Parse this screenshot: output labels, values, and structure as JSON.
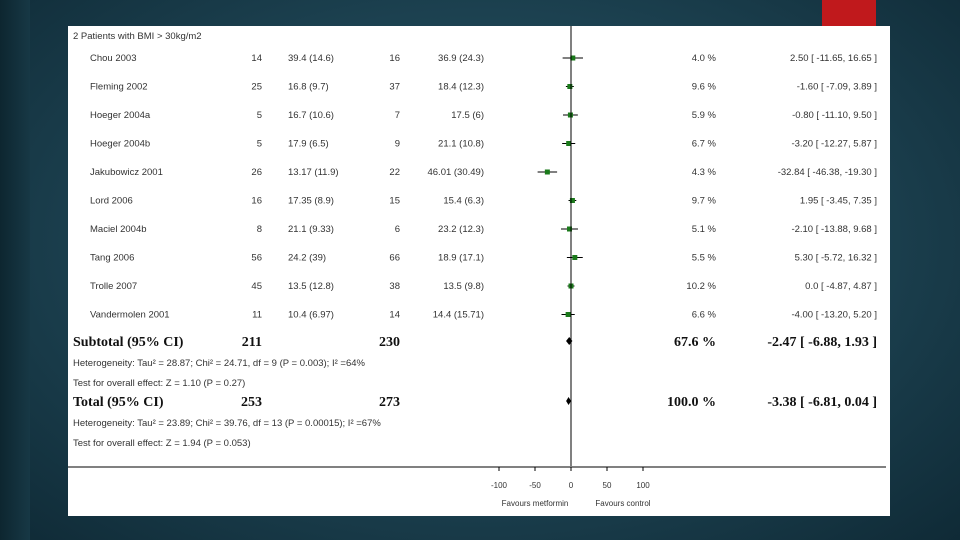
{
  "chart_data": {
    "type": "forest",
    "subgroup_label": "2 Patients with BMI > 30kg/m2",
    "studies": [
      {
        "name": "Chou 2003",
        "n1": "14",
        "m1": "39.4 (14.6)",
        "n2": "16",
        "m2": "36.9 (24.3)",
        "weight": "4.0 %",
        "ci_text": "2.50 [ -11.65, 16.65 ]",
        "est": 2.5,
        "lo": -11.65,
        "hi": 16.65
      },
      {
        "name": "Fleming 2002",
        "n1": "25",
        "m1": "16.8 (9.7)",
        "n2": "37",
        "m2": "18.4 (12.3)",
        "weight": "9.6 %",
        "ci_text": "-1.60 [ -7.09, 3.89 ]",
        "est": -1.6,
        "lo": -7.09,
        "hi": 3.89
      },
      {
        "name": "Hoeger 2004a",
        "n1": "5",
        "m1": "16.7 (10.6)",
        "n2": "7",
        "m2": "17.5 (6)",
        "weight": "5.9 %",
        "ci_text": "-0.80 [ -11.10, 9.50 ]",
        "est": -0.8,
        "lo": -11.1,
        "hi": 9.5
      },
      {
        "name": "Hoeger 2004b",
        "n1": "5",
        "m1": "17.9 (6.5)",
        "n2": "9",
        "m2": "21.1 (10.8)",
        "weight": "6.7 %",
        "ci_text": "-3.20 [ -12.27, 5.87 ]",
        "est": -3.2,
        "lo": -12.27,
        "hi": 5.87
      },
      {
        "name": "Jakubowicz 2001",
        "n1": "26",
        "m1": "13.17 (11.9)",
        "n2": "22",
        "m2": "46.01 (30.49)",
        "weight": "4.3 %",
        "ci_text": "-32.84 [ -46.38, -19.30 ]",
        "est": -32.84,
        "lo": -46.38,
        "hi": -19.3
      },
      {
        "name": "Lord 2006",
        "n1": "16",
        "m1": "17.35 (8.9)",
        "n2": "15",
        "m2": "15.4 (6.3)",
        "weight": "9.7 %",
        "ci_text": "1.95 [ -3.45, 7.35 ]",
        "est": 1.95,
        "lo": -3.45,
        "hi": 7.35
      },
      {
        "name": "Maciel 2004b",
        "n1": "8",
        "m1": "21.1 (9.33)",
        "n2": "6",
        "m2": "23.2 (12.3)",
        "weight": "5.1 %",
        "ci_text": "-2.10 [ -13.88, 9.68 ]",
        "est": -2.1,
        "lo": -13.88,
        "hi": 9.68
      },
      {
        "name": "Tang 2006",
        "n1": "56",
        "m1": "24.2 (39)",
        "n2": "66",
        "m2": "18.9 (17.1)",
        "weight": "5.5 %",
        "ci_text": "5.30 [ -5.72, 16.32 ]",
        "est": 5.3,
        "lo": -5.72,
        "hi": 16.32
      },
      {
        "name": "Trolle 2007",
        "n1": "45",
        "m1": "13.5 (12.8)",
        "n2": "38",
        "m2": "13.5 (9.8)",
        "weight": "10.2 %",
        "ci_text": "0.0 [ -4.87, 4.87 ]",
        "est": 0.0,
        "lo": -4.87,
        "hi": 4.87
      },
      {
        "name": "Vandermolen 2001",
        "n1": "11",
        "m1": "10.4 (6.97)",
        "n2": "14",
        "m2": "14.4 (15.71)",
        "weight": "6.6 %",
        "ci_text": "-4.00 [ -13.20, 5.20 ]",
        "est": -4.0,
        "lo": -13.2,
        "hi": 5.2
      }
    ],
    "subtotal": {
      "label": "Subtotal (95% CI)",
      "n1": "211",
      "n2": "230",
      "weight": "67.6 %",
      "ci_text": "-2.47 [ -6.88, 1.93 ]",
      "est": -2.47,
      "lo": -6.88,
      "hi": 1.93
    },
    "subtotal_heterogeneity": "Heterogeneity: Tau² = 28.87; Chi² = 24.71, df = 9 (P = 0.003); I² =64%",
    "subtotal_effect": "Test for overall effect: Z = 1.10 (P = 0.27)",
    "total": {
      "label": "Total (95% CI)",
      "n1": "253",
      "n2": "273",
      "weight": "100.0 %",
      "ci_text": "-3.38 [ -6.81, 0.04 ]",
      "est": -3.38,
      "lo": -6.81,
      "hi": 0.04
    },
    "total_heterogeneity": "Heterogeneity: Tau² = 23.89; Chi² = 39.76, df = 13 (P = 0.00015); I² =67%",
    "total_effect": "Test for overall effect: Z = 1.94 (P = 0.053)",
    "x_ticks": [
      "-100",
      "-50",
      "0",
      "50",
      "100"
    ],
    "xlim": [
      -100,
      100
    ],
    "favours_left": "Favours metformin",
    "favours_right": "Favours control",
    "colors": {
      "marker": "#1a7a1a",
      "line": "#000000"
    }
  }
}
